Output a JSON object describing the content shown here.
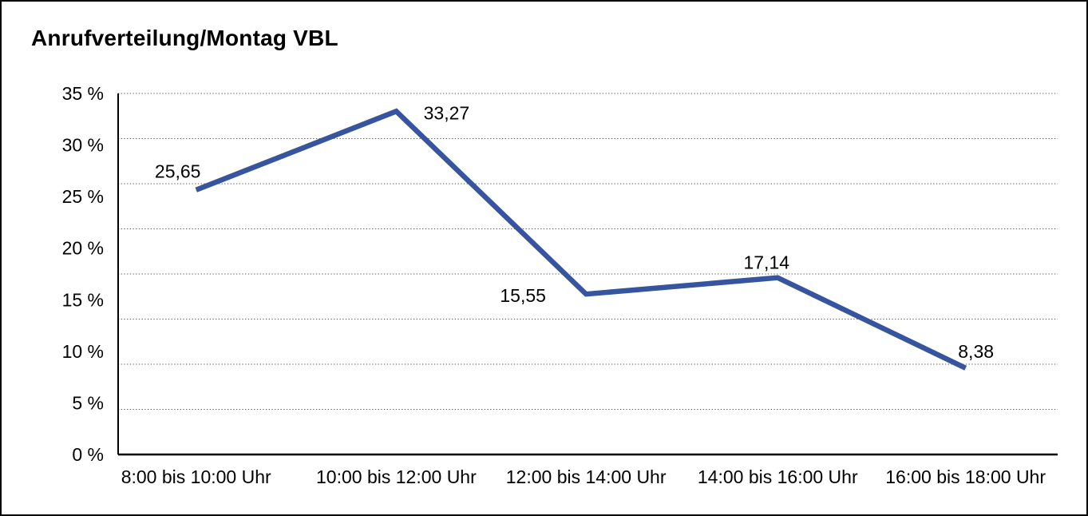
{
  "title": "Anrufverteilung/Montag VBL",
  "chart_data": {
    "type": "line",
    "title": "Anrufverteilung/Montag VBL",
    "categories": [
      "8:00 bis 10:00 Uhr",
      "10:00 bis 12:00 Uhr",
      "12:00 bis 14:00 Uhr",
      "14:00 bis 16:00 Uhr",
      "16:00 bis 18:00 Uhr"
    ],
    "values": [
      25.65,
      33.27,
      15.55,
      17.14,
      8.38
    ],
    "value_labels": [
      "25,65",
      "33,27",
      "15,55",
      "17,14",
      "8,38"
    ],
    "xlabel": "",
    "ylabel": "",
    "ylim": [
      0,
      35
    ],
    "y_tick_values": [
      0,
      5,
      10,
      15,
      20,
      25,
      30,
      35
    ],
    "y_tick_labels": [
      "0 %",
      "5 %",
      "10 %",
      "15 %",
      "20 %",
      "25 %",
      "30 %",
      "35 %"
    ],
    "grid": true,
    "grid_divisions": 8,
    "grid_style": "dotted",
    "legend_position": "none",
    "line_color": "#37549F",
    "axis_color": "#000000",
    "grid_color": "#555555",
    "text_color": "#000000",
    "background_color": "#ffffff"
  }
}
